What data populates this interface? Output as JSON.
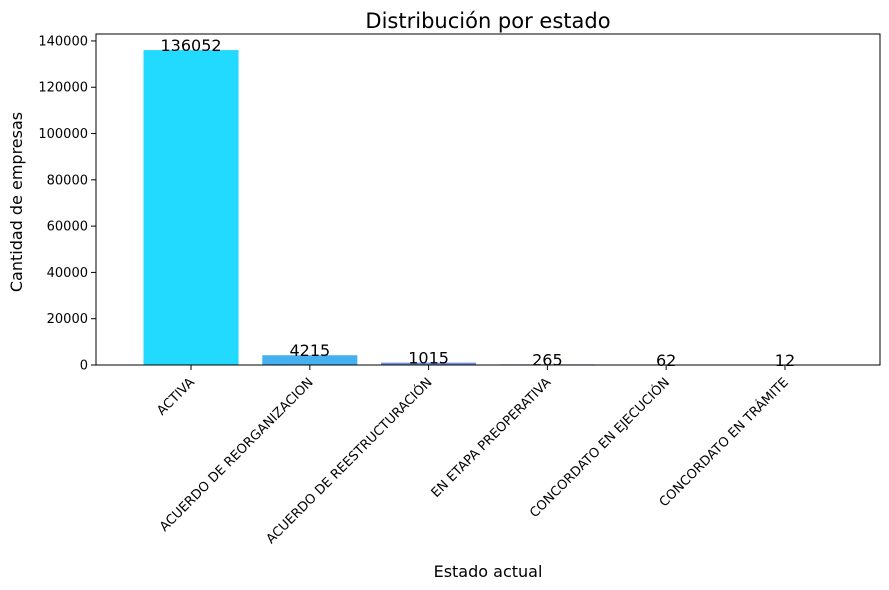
{
  "chart_data": {
    "type": "bar",
    "title": "Distribución por estado",
    "xlabel": "Estado actual",
    "ylabel": "Cantidad de empresas",
    "categories": [
      "ACTIVA",
      "ACUERDO DE REORGANIZACION",
      "ACUERDO DE REESTRUCTURACIÓN",
      "EN ETAPA PREOPERATIVA",
      "CONCORDATO EN EJECUCIÓN",
      "CONCORDATO EN TRÁMITE"
    ],
    "values": [
      136052,
      4215,
      1015,
      265,
      62,
      12
    ],
    "value_labels": [
      "136052",
      "4215",
      "1015",
      "265",
      "62",
      "12"
    ],
    "colors": [
      "#22d9ff",
      "#45b0f0",
      "#6f8ee8",
      "#7a6fe0",
      "#8a62d8",
      "#9a55d0"
    ],
    "ylim": [
      0,
      143000
    ],
    "yticks": [
      0,
      20000,
      40000,
      60000,
      80000,
      100000,
      120000,
      140000
    ],
    "ytick_labels": [
      "0",
      "20000",
      "40000",
      "60000",
      "80000",
      "100000",
      "120000",
      "140000"
    ],
    "xtick_rotation_deg": 45,
    "grid": false,
    "legend": "none"
  }
}
